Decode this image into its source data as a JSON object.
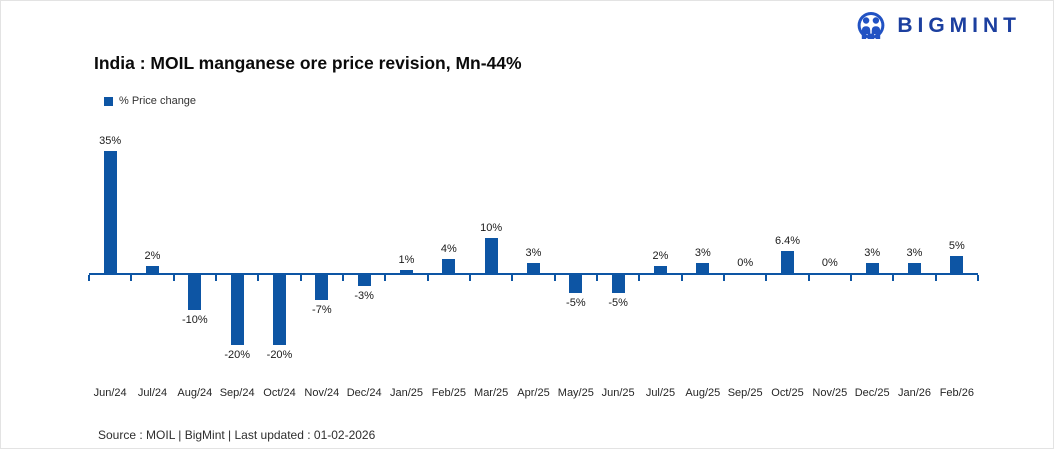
{
  "logo": {
    "text": "BIGMINT"
  },
  "header": {
    "title": "India : MOIL manganese ore price revision, Mn-44%"
  },
  "legend": {
    "label": "% Price change"
  },
  "chart_data": {
    "type": "bar",
    "title": "India : MOIL manganese ore price revision, Mn-44%",
    "series_name": "% Price change",
    "categories": [
      "Jun/24",
      "Jul/24",
      "Aug/24",
      "Sep/24",
      "Oct/24",
      "Nov/24",
      "Dec/24",
      "Jan/25",
      "Feb/25",
      "Mar/25",
      "Apr/25",
      "May/25",
      "Jun/25",
      "Jul/25",
      "Aug/25",
      "Sep/25",
      "Oct/25",
      "Nov/25",
      "Dec/25",
      "Jan/26",
      "Feb/26"
    ],
    "values": [
      35,
      2,
      -10,
      -20,
      -20,
      -7,
      -3,
      1,
      4,
      10,
      3,
      -5,
      -5,
      2,
      3,
      0,
      6.4,
      0,
      3,
      3,
      5
    ],
    "labels": [
      "35%",
      "2%",
      "-10%",
      "-20%",
      "-20%",
      "-7%",
      "-3%",
      "1%",
      "4%",
      "10%",
      "3%",
      "-5%",
      "-5%",
      "2%",
      "3%",
      "0%",
      "6.4%",
      "0%",
      "3%",
      "3%",
      "5%"
    ],
    "xlabel": "",
    "ylabel": "% Price change",
    "ylim": [
      -25,
      40
    ],
    "grid": false,
    "legend_position": "top-left",
    "bar_color": "#0d55a4",
    "axis_color": "#0d55a4"
  },
  "footer": {
    "source": "Source : MOIL | BigMint | Last updated : 01-02-2026"
  }
}
